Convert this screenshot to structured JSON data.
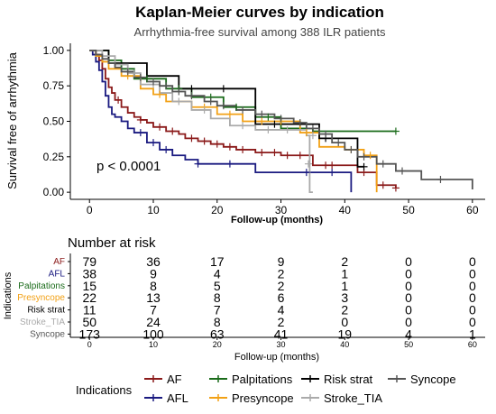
{
  "chart_data": [
    {
      "type": "line",
      "subtype": "kaplan-meier",
      "title": "Kaplan-Meier curves by indication",
      "subtitle": "Arrhythmia-free survival among 388 ILR patients",
      "xlabel": "Follow-up (months)",
      "ylabel": "Survival free of arrhythmia",
      "xlim": [
        -3,
        62
      ],
      "ylim": [
        -0.05,
        1.05
      ],
      "xticks": [
        0,
        10,
        20,
        30,
        40,
        50,
        60
      ],
      "yticks": [
        0.0,
        0.25,
        0.5,
        0.75,
        1.0
      ],
      "ytick_labels": [
        "0.00",
        "0.25",
        "0.50",
        "0.75",
        "1.00"
      ],
      "annotation": "p < 0.0001",
      "grid": false,
      "legend_position": "bottom",
      "legend_title": "Indications",
      "series": [
        {
          "name": "AF",
          "color": "#8B1A1A",
          "steps": [
            [
              0,
              1.0
            ],
            [
              1,
              0.97
            ],
            [
              1.5,
              0.93
            ],
            [
              2,
              0.87
            ],
            [
              2.5,
              0.8
            ],
            [
              3,
              0.74
            ],
            [
              3.5,
              0.7
            ],
            [
              4,
              0.65
            ],
            [
              5,
              0.6
            ],
            [
              6,
              0.56
            ],
            [
              7,
              0.53
            ],
            [
              8,
              0.51
            ],
            [
              9,
              0.49
            ],
            [
              10,
              0.46
            ],
            [
              12,
              0.43
            ],
            [
              14,
              0.41
            ],
            [
              15,
              0.38
            ],
            [
              17,
              0.36
            ],
            [
              19,
              0.34
            ],
            [
              21,
              0.32
            ],
            [
              23,
              0.3
            ],
            [
              26,
              0.28
            ],
            [
              30,
              0.26
            ],
            [
              35,
              0.19
            ],
            [
              42,
              0.14
            ],
            [
              45,
              0.05
            ],
            [
              48,
              0.03
            ]
          ],
          "censors": [
            [
              4.5,
              0.65
            ],
            [
              8,
              0.51
            ],
            [
              11,
              0.46
            ],
            [
              13,
              0.43
            ],
            [
              16,
              0.38
            ],
            [
              18,
              0.36
            ],
            [
              20,
              0.34
            ],
            [
              22,
              0.32
            ],
            [
              24,
              0.3
            ],
            [
              27,
              0.28
            ],
            [
              29,
              0.28
            ],
            [
              31,
              0.26
            ],
            [
              33,
              0.26
            ],
            [
              37,
              0.19
            ],
            [
              38,
              0.19
            ],
            [
              43,
              0.14
            ],
            [
              46,
              0.05
            ],
            [
              48,
              0.03
            ]
          ]
        },
        {
          "name": "AFL",
          "color": "#1A1A80",
          "steps": [
            [
              0,
              1.0
            ],
            [
              0.5,
              0.97
            ],
            [
              1,
              0.92
            ],
            [
              1.5,
              0.86
            ],
            [
              2,
              0.78
            ],
            [
              2.5,
              0.68
            ],
            [
              3,
              0.6
            ],
            [
              3.5,
              0.55
            ],
            [
              4,
              0.53
            ],
            [
              5,
              0.5
            ],
            [
              6,
              0.45
            ],
            [
              7,
              0.42
            ],
            [
              9,
              0.35
            ],
            [
              11,
              0.3
            ],
            [
              13,
              0.26
            ],
            [
              15,
              0.23
            ],
            [
              17,
              0.2
            ],
            [
              26,
              0.14
            ],
            [
              30,
              0.14
            ],
            [
              41,
              0.0
            ]
          ],
          "censors": [
            [
              8,
              0.42
            ],
            [
              10,
              0.35
            ],
            [
              12,
              0.3
            ],
            [
              17,
              0.2
            ],
            [
              22,
              0.2
            ],
            [
              34,
              0.14
            ],
            [
              38,
              0.14
            ]
          ]
        },
        {
          "name": "Palpitations",
          "color": "#1A6B1A",
          "steps": [
            [
              0,
              1.0
            ],
            [
              3,
              0.93
            ],
            [
              5,
              0.87
            ],
            [
              7,
              0.8
            ],
            [
              12,
              0.73
            ],
            [
              16,
              0.67
            ],
            [
              21,
              0.6
            ],
            [
              26,
              0.53
            ],
            [
              30,
              0.45
            ],
            [
              35,
              0.43
            ]
          ],
          "censors": [
            [
              9,
              0.8
            ],
            [
              14,
              0.73
            ],
            [
              19,
              0.67
            ],
            [
              23,
              0.6
            ],
            [
              28,
              0.53
            ],
            [
              48,
              0.43
            ]
          ]
        },
        {
          "name": "Presyncope",
          "color": "#F2A116",
          "steps": [
            [
              0,
              1.0
            ],
            [
              1,
              0.96
            ],
            [
              2,
              0.92
            ],
            [
              3,
              0.87
            ],
            [
              5,
              0.82
            ],
            [
              8,
              0.73
            ],
            [
              10,
              0.69
            ],
            [
              12,
              0.64
            ],
            [
              16,
              0.6
            ],
            [
              20,
              0.55
            ],
            [
              24,
              0.5
            ],
            [
              33,
              0.42
            ],
            [
              36,
              0.32
            ],
            [
              40,
              0.3
            ],
            [
              43,
              0.26
            ],
            [
              45,
              0.0
            ]
          ],
          "censors": [
            [
              6,
              0.82
            ],
            [
              11,
              0.69
            ],
            [
              18,
              0.6
            ],
            [
              22,
              0.55
            ],
            [
              27,
              0.5
            ],
            [
              30,
              0.5
            ],
            [
              34,
              0.42
            ],
            [
              41,
              0.3
            ],
            [
              44,
              0.26
            ]
          ]
        },
        {
          "name": "Risk strat",
          "color": "#000000",
          "steps": [
            [
              0,
              1.0
            ],
            [
              3,
              0.91
            ],
            [
              9,
              0.82
            ],
            [
              14,
              0.73
            ],
            [
              26,
              0.48
            ],
            [
              36,
              0.38
            ],
            [
              42,
              0.18
            ]
          ],
          "censors": [
            [
              16,
              0.73
            ],
            [
              21,
              0.73
            ],
            [
              29,
              0.48
            ],
            [
              37,
              0.38
            ],
            [
              43,
              0.18
            ]
          ]
        },
        {
          "name": "Stroke_TIA",
          "color": "#AAAAAA",
          "steps": [
            [
              0,
              1.0
            ],
            [
              2,
              0.96
            ],
            [
              4,
              0.9
            ],
            [
              6,
              0.84
            ],
            [
              8,
              0.76
            ],
            [
              11,
              0.7
            ],
            [
              13,
              0.64
            ],
            [
              16,
              0.58
            ],
            [
              19,
              0.52
            ],
            [
              22,
              0.47
            ],
            [
              26,
              0.44
            ],
            [
              34,
              0.4
            ],
            [
              34.5,
              0.0
            ]
          ],
          "censors": [
            [
              7,
              0.84
            ],
            [
              10,
              0.76
            ],
            [
              14,
              0.64
            ],
            [
              18,
              0.58
            ],
            [
              24,
              0.47
            ],
            [
              28,
              0.44
            ],
            [
              31,
              0.44
            ],
            [
              35,
              0.4
            ],
            [
              34.3,
              0.2
            ]
          ]
        },
        {
          "name": "Syncope",
          "color": "#555555",
          "steps": [
            [
              0,
              1.0
            ],
            [
              1,
              0.97
            ],
            [
              2,
              0.94
            ],
            [
              3,
              0.91
            ],
            [
              4,
              0.88
            ],
            [
              5,
              0.85
            ],
            [
              7,
              0.81
            ],
            [
              9,
              0.78
            ],
            [
              11,
              0.75
            ],
            [
              13,
              0.71
            ],
            [
              15,
              0.68
            ],
            [
              18,
              0.64
            ],
            [
              20,
              0.61
            ],
            [
              23,
              0.58
            ],
            [
              26,
              0.55
            ],
            [
              29,
              0.52
            ],
            [
              32,
              0.49
            ],
            [
              34,
              0.45
            ],
            [
              36,
              0.41
            ],
            [
              38,
              0.35
            ],
            [
              40,
              0.3
            ],
            [
              42,
              0.25
            ],
            [
              45,
              0.2
            ],
            [
              48,
              0.15
            ],
            [
              52,
              0.09
            ],
            [
              60,
              0.02
            ]
          ],
          "censors": [
            [
              6,
              0.85
            ],
            [
              8,
              0.81
            ],
            [
              10,
              0.78
            ],
            [
              12,
              0.75
            ],
            [
              14,
              0.71
            ],
            [
              16,
              0.68
            ],
            [
              19,
              0.64
            ],
            [
              21,
              0.61
            ],
            [
              24,
              0.58
            ],
            [
              27,
              0.55
            ],
            [
              30,
              0.52
            ],
            [
              33,
              0.49
            ],
            [
              35,
              0.45
            ],
            [
              37,
              0.41
            ],
            [
              39,
              0.35
            ],
            [
              41,
              0.3
            ],
            [
              43,
              0.25
            ],
            [
              46,
              0.2
            ],
            [
              49,
              0.15
            ],
            [
              55,
              0.09
            ]
          ]
        }
      ]
    },
    {
      "type": "table",
      "title": "Number at risk",
      "row_axis_label": "Indications",
      "xlabel": "Follow-up (months)",
      "time_points": [
        0,
        10,
        20,
        30,
        40,
        50,
        60
      ],
      "rows": [
        {
          "name": "AF",
          "color": "#8B1A1A",
          "values": [
            79,
            36,
            17,
            9,
            2,
            0,
            0
          ]
        },
        {
          "name": "AFL",
          "color": "#1A1A80",
          "values": [
            38,
            9,
            4,
            2,
            1,
            0,
            0
          ]
        },
        {
          "name": "Palpitations",
          "color": "#1A6B1A",
          "values": [
            15,
            8,
            5,
            2,
            1,
            0,
            0
          ]
        },
        {
          "name": "Presyncope",
          "color": "#F2A116",
          "values": [
            22,
            13,
            8,
            6,
            3,
            0,
            0
          ]
        },
        {
          "name": "Risk strat",
          "color": "#000000",
          "values": [
            11,
            7,
            7,
            4,
            2,
            0,
            0
          ]
        },
        {
          "name": "Stroke_TIA",
          "color": "#AAAAAA",
          "values": [
            50,
            24,
            8,
            2,
            0,
            0,
            0
          ]
        },
        {
          "name": "Syncope",
          "color": "#555555",
          "values": [
            173,
            100,
            63,
            41,
            19,
            4,
            1
          ]
        }
      ]
    }
  ],
  "legend": {
    "title": "Indications",
    "rows": [
      [
        "AF",
        "Palpitations",
        "Risk strat",
        "Syncope"
      ],
      [
        "AFL",
        "Presyncope",
        "Stroke_TIA"
      ]
    ]
  }
}
